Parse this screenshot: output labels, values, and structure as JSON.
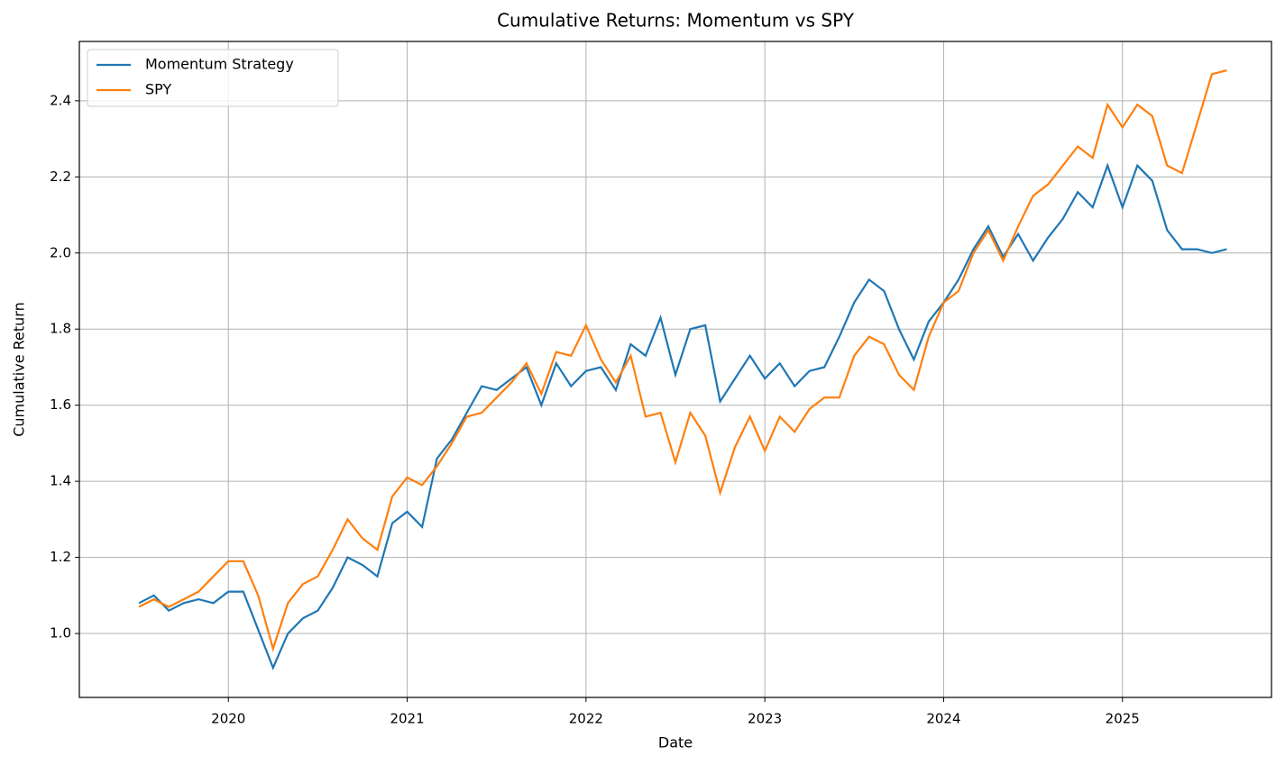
{
  "chart_data": {
    "type": "line",
    "title": "Cumulative Returns: Momentum vs SPY",
    "xlabel": "Date",
    "ylabel": "Cumulative Return",
    "x": [
      "2019-07",
      "2019-08",
      "2019-09",
      "2019-10",
      "2019-11",
      "2019-12",
      "2020-01",
      "2020-02",
      "2020-03",
      "2020-04",
      "2020-05",
      "2020-06",
      "2020-07",
      "2020-08",
      "2020-09",
      "2020-10",
      "2020-11",
      "2020-12",
      "2021-01",
      "2021-02",
      "2021-03",
      "2021-04",
      "2021-05",
      "2021-06",
      "2021-07",
      "2021-08",
      "2021-09",
      "2021-10",
      "2021-11",
      "2021-12",
      "2022-01",
      "2022-02",
      "2022-03",
      "2022-04",
      "2022-05",
      "2022-06",
      "2022-07",
      "2022-08",
      "2022-09",
      "2022-10",
      "2022-11",
      "2022-12",
      "2023-01",
      "2023-02",
      "2023-03",
      "2023-04",
      "2023-05",
      "2023-06",
      "2023-07",
      "2023-08",
      "2023-09",
      "2023-10",
      "2023-11",
      "2023-12",
      "2024-01",
      "2024-02",
      "2024-03",
      "2024-04",
      "2024-05",
      "2024-06",
      "2024-07",
      "2024-08",
      "2024-09",
      "2024-10",
      "2024-11",
      "2024-12",
      "2025-01",
      "2025-02",
      "2025-03",
      "2025-04",
      "2025-05",
      "2025-06",
      "2025-07",
      "2025-08"
    ],
    "series": [
      {
        "name": "Momentum Strategy",
        "color": "#1f77b4",
        "values": [
          1.08,
          1.1,
          1.06,
          1.08,
          1.09,
          1.08,
          1.11,
          1.11,
          1.01,
          0.91,
          1.0,
          1.04,
          1.06,
          1.12,
          1.2,
          1.18,
          1.15,
          1.29,
          1.32,
          1.28,
          1.46,
          1.51,
          1.58,
          1.65,
          1.64,
          1.67,
          1.7,
          1.6,
          1.71,
          1.65,
          1.69,
          1.7,
          1.64,
          1.76,
          1.73,
          1.83,
          1.68,
          1.8,
          1.81,
          1.61,
          1.67,
          1.73,
          1.67,
          1.71,
          1.65,
          1.69,
          1.7,
          1.78,
          1.87,
          1.93,
          1.9,
          1.8,
          1.72,
          1.82,
          1.87,
          1.93,
          2.01,
          2.07,
          1.99,
          2.05,
          1.98,
          2.04,
          2.09,
          2.16,
          2.12,
          2.23,
          2.12,
          2.23,
          2.19,
          2.06,
          2.01,
          2.01,
          2.0,
          2.01
        ]
      },
      {
        "name": "SPY",
        "color": "#ff7f0e",
        "values": [
          1.07,
          1.09,
          1.07,
          1.09,
          1.11,
          1.15,
          1.19,
          1.19,
          1.1,
          0.96,
          1.08,
          1.13,
          1.15,
          1.22,
          1.3,
          1.25,
          1.22,
          1.36,
          1.41,
          1.39,
          1.44,
          1.5,
          1.57,
          1.58,
          1.62,
          1.66,
          1.71,
          1.63,
          1.74,
          1.73,
          1.81,
          1.72,
          1.66,
          1.73,
          1.57,
          1.58,
          1.45,
          1.58,
          1.52,
          1.37,
          1.49,
          1.57,
          1.48,
          1.57,
          1.53,
          1.59,
          1.62,
          1.62,
          1.73,
          1.78,
          1.76,
          1.68,
          1.64,
          1.78,
          1.87,
          1.9,
          2.0,
          2.06,
          1.98,
          2.07,
          2.15,
          2.18,
          2.23,
          2.28,
          2.25,
          2.39,
          2.33,
          2.39,
          2.36,
          2.23,
          2.21,
          2.34,
          2.47,
          2.48
        ]
      }
    ],
    "xlim": [
      "2019-03",
      "2025-11"
    ],
    "xticks": [
      2020,
      2021,
      2022,
      2023,
      2024,
      2025
    ],
    "ylim": [
      0.832,
      2.556
    ],
    "yticks": [
      {
        "value": 1.0,
        "label": "1.0"
      },
      {
        "value": 1.2,
        "label": "1.2"
      },
      {
        "value": 1.4,
        "label": "1.4"
      },
      {
        "value": 1.6,
        "label": "1.6"
      },
      {
        "value": 1.8,
        "label": "1.8"
      },
      {
        "value": 2.0,
        "label": "2.0"
      },
      {
        "value": 2.2,
        "label": "2.2"
      },
      {
        "value": 2.4,
        "label": "2.4"
      }
    ],
    "grid": true,
    "legend": "upper left"
  }
}
